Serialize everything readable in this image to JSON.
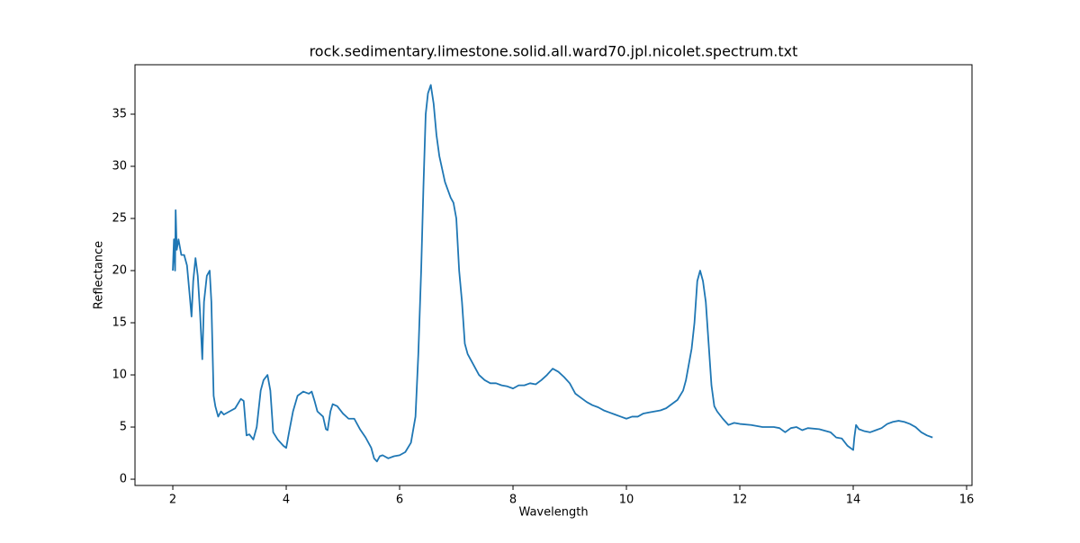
{
  "chart_data": {
    "type": "line",
    "title": "rock.sedimentary.limestone.solid.all.ward70.jpl.nicolet.spectrum.txt",
    "x_label": "Wavelength",
    "y_label": "Reflectance",
    "x": [
      2.0,
      2.02,
      2.04,
      2.05,
      2.07,
      2.1,
      2.15,
      2.2,
      2.25,
      2.3,
      2.33,
      2.36,
      2.4,
      2.44,
      2.48,
      2.52,
      2.55,
      2.6,
      2.65,
      2.68,
      2.72,
      2.75,
      2.8,
      2.85,
      2.9,
      3.0,
      3.1,
      3.2,
      3.25,
      3.3,
      3.35,
      3.42,
      3.48,
      3.55,
      3.6,
      3.67,
      3.72,
      3.77,
      3.85,
      3.95,
      4.0,
      4.05,
      4.12,
      4.2,
      4.3,
      4.4,
      4.45,
      4.5,
      4.55,
      4.65,
      4.7,
      4.73,
      4.78,
      4.82,
      4.9,
      5.0,
      5.1,
      5.2,
      5.3,
      5.4,
      5.5,
      5.55,
      5.6,
      5.65,
      5.7,
      5.8,
      5.9,
      6.0,
      6.1,
      6.2,
      6.28,
      6.33,
      6.38,
      6.42,
      6.46,
      6.5,
      6.55,
      6.6,
      6.65,
      6.7,
      6.8,
      6.9,
      6.95,
      7.0,
      7.05,
      7.1,
      7.15,
      7.2,
      7.3,
      7.4,
      7.5,
      7.6,
      7.7,
      7.8,
      7.9,
      8.0,
      8.1,
      8.2,
      8.3,
      8.4,
      8.5,
      8.6,
      8.7,
      8.8,
      8.9,
      9.0,
      9.1,
      9.2,
      9.3,
      9.4,
      9.5,
      9.6,
      9.7,
      9.8,
      9.9,
      10.0,
      10.1,
      10.2,
      10.3,
      10.4,
      10.5,
      10.6,
      10.7,
      10.8,
      10.9,
      11.0,
      11.05,
      11.1,
      11.15,
      11.2,
      11.25,
      11.3,
      11.35,
      11.4,
      11.45,
      11.5,
      11.55,
      11.6,
      11.7,
      11.8,
      11.9,
      12.0,
      12.2,
      12.4,
      12.6,
      12.7,
      12.8,
      12.9,
      13.0,
      13.1,
      13.2,
      13.4,
      13.6,
      13.7,
      13.8,
      13.9,
      14.0,
      14.02,
      14.05,
      14.1,
      14.2,
      14.3,
      14.4,
      14.5,
      14.6,
      14.7,
      14.8,
      14.9,
      15.0,
      15.1,
      15.2,
      15.3,
      15.4
    ],
    "series": [
      {
        "name": "Reflectance",
        "color": "#1f77b4",
        "values": [
          20,
          23,
          20,
          25.8,
          22,
          23,
          21.5,
          21.5,
          20.5,
          17.5,
          15.6,
          19,
          21.2,
          19.5,
          16,
          11.5,
          17,
          19.5,
          20,
          17,
          8,
          7,
          6,
          6.5,
          6.2,
          6.5,
          6.8,
          7.7,
          7.5,
          4.2,
          4.3,
          3.8,
          5,
          8.5,
          9.5,
          10,
          8.5,
          4.5,
          3.8,
          3.2,
          3,
          4.5,
          6.5,
          8,
          8.4,
          8.2,
          8.4,
          7.5,
          6.5,
          6,
          4.8,
          4.7,
          6.5,
          7.2,
          7,
          6.3,
          5.8,
          5.8,
          4.8,
          4,
          3,
          2,
          1.7,
          2.2,
          2.3,
          2,
          2.2,
          2.3,
          2.6,
          3.5,
          6,
          12,
          20,
          28,
          35,
          37,
          37.8,
          36,
          33,
          31,
          28.5,
          27,
          26.5,
          25,
          20,
          17,
          13,
          12,
          11,
          10,
          9.5,
          9.2,
          9.2,
          9.0,
          8.9,
          8.7,
          9,
          9.0,
          9.2,
          9.1,
          9.5,
          10,
          10.6,
          10.3,
          9.8,
          9.2,
          8.2,
          7.8,
          7.4,
          7.1,
          6.9,
          6.6,
          6.4,
          6.2,
          6.0,
          5.8,
          6.0,
          6.0,
          6.3,
          6.4,
          6.5,
          6.6,
          6.8,
          7.2,
          7.6,
          8.5,
          9.5,
          11,
          12.5,
          15,
          19,
          20,
          19,
          17,
          13,
          9,
          7,
          6.5,
          5.8,
          5.2,
          5.4,
          5.3,
          5.2,
          5.0,
          5.0,
          4.9,
          4.5,
          4.9,
          5.0,
          4.7,
          4.9,
          4.8,
          4.5,
          4.0,
          3.9,
          3.2,
          2.8,
          4,
          5.2,
          4.8,
          4.6,
          4.5,
          4.7,
          4.9,
          5.3,
          5.5,
          5.6,
          5.5,
          5.3,
          5.0,
          4.5,
          4.2,
          4.0
        ]
      }
    ],
    "xlim": [
      1.333,
      16.095
    ],
    "ylim": [
      -0.6,
      39.74
    ],
    "xticks": [
      2,
      4,
      6,
      8,
      10,
      12,
      14,
      16
    ],
    "yticks": [
      0,
      5,
      10,
      15,
      20,
      25,
      30,
      35
    ]
  }
}
